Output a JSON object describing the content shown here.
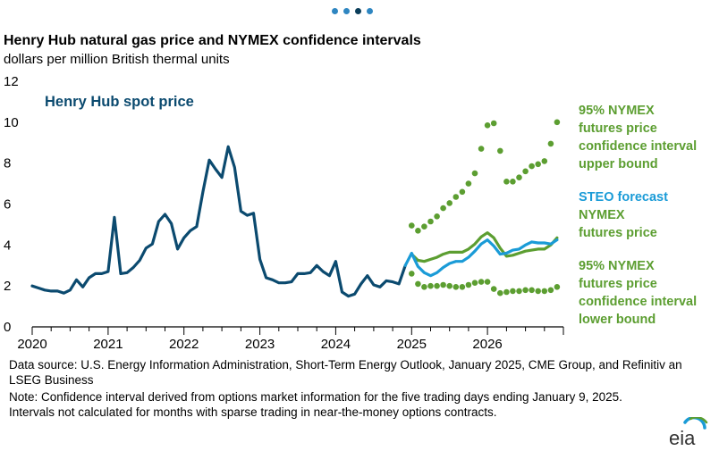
{
  "pager": {
    "count": 4,
    "active": 2
  },
  "header": {
    "title": "Henry Hub natural gas price and NYMEX confidence intervals",
    "subtitle": "dollars per million British thermal units"
  },
  "labels": {
    "spot": "Henry Hub spot price",
    "upper": [
      "95% NYMEX",
      "futures price",
      "confidence interval",
      "upper bound"
    ],
    "steo": "STEO forecast",
    "futures": [
      "NYMEX",
      "futures price"
    ],
    "lower": [
      "95% NYMEX",
      "futures price",
      "confidence interval",
      "lower bound"
    ]
  },
  "footer": {
    "source": "Data source: U.S. Energy Information Administration, Short-Term Energy Outlook, January 2025, CME Group, and Refinitiv an LSEG Business",
    "note": "Note: Confidence interval derived from options market information for the five trading days ending January 9, 2025. Intervals not calculated for months with sparse trading in near-the-money options contracts.",
    "logo_text": "eia"
  },
  "colors": {
    "spot": "#0b4a6f",
    "steo": "#1a9bd7",
    "nymex": "#5c9e31",
    "axis": "#000000"
  },
  "chart_data": {
    "type": "line",
    "ylim": [
      0,
      12
    ],
    "yticks": [
      0,
      2,
      4,
      6,
      8,
      10,
      12
    ],
    "xlim": [
      "2020-01",
      "2026-12"
    ],
    "xticks": [
      "2020",
      "2021",
      "2022",
      "2023",
      "2024",
      "2025",
      "2026"
    ],
    "grid": false,
    "series": [
      {
        "name": "Henry Hub spot price",
        "style": "solid",
        "x": [
          "2020-01",
          "2020-02",
          "2020-03",
          "2020-04",
          "2020-05",
          "2020-06",
          "2020-07",
          "2020-08",
          "2020-09",
          "2020-10",
          "2020-11",
          "2020-12",
          "2021-01",
          "2021-02",
          "2021-03",
          "2021-04",
          "2021-05",
          "2021-06",
          "2021-07",
          "2021-08",
          "2021-09",
          "2021-10",
          "2021-11",
          "2021-12",
          "2022-01",
          "2022-02",
          "2022-03",
          "2022-04",
          "2022-05",
          "2022-06",
          "2022-07",
          "2022-08",
          "2022-09",
          "2022-10",
          "2022-11",
          "2022-12",
          "2023-01",
          "2023-02",
          "2023-03",
          "2023-04",
          "2023-05",
          "2023-06",
          "2023-07",
          "2023-08",
          "2023-09",
          "2023-10",
          "2023-11",
          "2023-12",
          "2024-01",
          "2024-02",
          "2024-03",
          "2024-04",
          "2024-05",
          "2024-06",
          "2024-07",
          "2024-08",
          "2024-09",
          "2024-10",
          "2024-11",
          "2024-12"
        ],
        "values": [
          2.0,
          1.9,
          1.8,
          1.75,
          1.75,
          1.65,
          1.8,
          2.3,
          1.95,
          2.4,
          2.6,
          2.6,
          2.7,
          5.35,
          2.6,
          2.65,
          2.9,
          3.25,
          3.85,
          4.05,
          5.15,
          5.5,
          5.05,
          3.8,
          4.35,
          4.7,
          4.9,
          6.6,
          8.15,
          7.7,
          7.3,
          8.8,
          7.8,
          5.65,
          5.45,
          5.55,
          3.3,
          2.4,
          2.3,
          2.15,
          2.15,
          2.2,
          2.6,
          2.6,
          2.65,
          3.0,
          2.7,
          2.5,
          3.2,
          1.7,
          1.5,
          1.6,
          2.1,
          2.5,
          2.05,
          1.95,
          2.25,
          2.2,
          2.1,
          3.0
        ]
      },
      {
        "name": "STEO forecast",
        "style": "solid",
        "x": [
          "2024-12",
          "2025-01",
          "2025-02",
          "2025-03",
          "2025-04",
          "2025-05",
          "2025-06",
          "2025-07",
          "2025-08",
          "2025-09",
          "2025-10",
          "2025-11",
          "2025-12",
          "2026-01",
          "2026-02",
          "2026-03",
          "2026-04",
          "2026-05",
          "2026-06",
          "2026-07",
          "2026-08",
          "2026-09",
          "2026-10",
          "2026-11",
          "2026-12"
        ],
        "values": [
          3.0,
          3.6,
          2.95,
          2.65,
          2.5,
          2.65,
          2.9,
          3.1,
          3.2,
          3.2,
          3.4,
          3.7,
          4.05,
          4.25,
          3.95,
          3.55,
          3.6,
          3.75,
          3.8,
          4.0,
          4.15,
          4.1,
          4.1,
          4.05,
          4.25
        ]
      },
      {
        "name": "NYMEX futures price",
        "style": "solid",
        "x": [
          "2025-01",
          "2025-02",
          "2025-03",
          "2025-04",
          "2025-05",
          "2025-06",
          "2025-07",
          "2025-08",
          "2025-09",
          "2025-10",
          "2025-11",
          "2025-12",
          "2026-01",
          "2026-02",
          "2026-03",
          "2026-04",
          "2026-05",
          "2026-06",
          "2026-07",
          "2026-08",
          "2026-09",
          "2026-10",
          "2026-11",
          "2026-12"
        ],
        "values": [
          3.55,
          3.25,
          3.2,
          3.3,
          3.4,
          3.55,
          3.65,
          3.65,
          3.65,
          3.8,
          4.05,
          4.4,
          4.6,
          4.35,
          3.85,
          3.45,
          3.5,
          3.6,
          3.7,
          3.75,
          3.8,
          3.8,
          4.0,
          4.35
        ]
      },
      {
        "name": "95% NYMEX futures price confidence interval upper bound",
        "style": "dotted",
        "x": [
          "2025-01",
          "2025-02",
          "2025-03",
          "2025-04",
          "2025-05",
          "2025-06",
          "2025-07",
          "2025-08",
          "2025-09",
          "2025-10",
          "2025-11",
          "2025-12",
          "2026-01",
          "2026-02",
          "2026-03",
          "2026-04",
          "2026-05",
          "2026-06",
          "2026-07",
          "2026-08",
          "2026-09",
          "2026-10",
          "2026-11",
          "2026-12"
        ],
        "values": [
          4.95,
          4.7,
          4.9,
          5.15,
          5.4,
          5.8,
          6.05,
          6.35,
          6.6,
          7.0,
          7.5,
          8.7,
          9.85,
          9.95,
          8.6,
          7.1,
          7.1,
          7.3,
          7.6,
          7.85,
          7.95,
          8.1,
          8.95,
          10.0
        ]
      },
      {
        "name": "95% NYMEX futures price confidence interval lower bound",
        "style": "dotted",
        "x": [
          "2025-01",
          "2025-02",
          "2025-03",
          "2025-04",
          "2025-05",
          "2025-06",
          "2025-07",
          "2025-08",
          "2025-09",
          "2025-10",
          "2025-11",
          "2025-12",
          "2026-01",
          "2026-02",
          "2026-03",
          "2026-04",
          "2026-05",
          "2026-06",
          "2026-07",
          "2026-08",
          "2026-09",
          "2026-10",
          "2026-11",
          "2026-12"
        ],
        "values": [
          2.6,
          2.1,
          1.95,
          2.0,
          2.0,
          2.05,
          2.0,
          1.95,
          1.95,
          2.05,
          2.15,
          2.2,
          2.2,
          1.85,
          1.65,
          1.7,
          1.75,
          1.75,
          1.8,
          1.8,
          1.75,
          1.75,
          1.8,
          1.95
        ]
      }
    ]
  }
}
